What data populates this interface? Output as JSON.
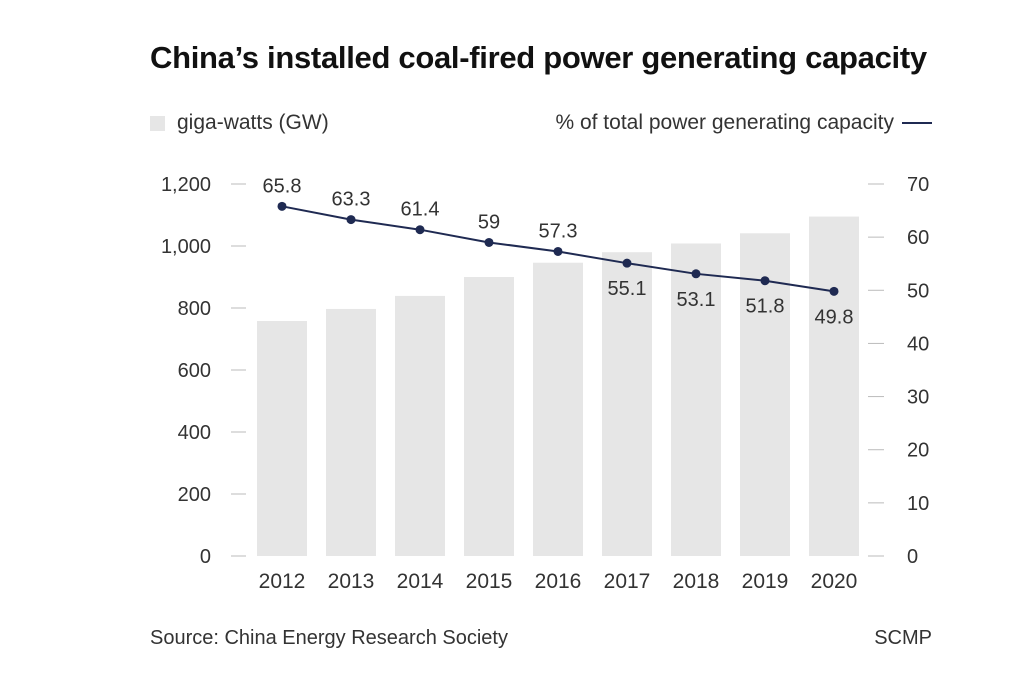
{
  "chart_data": {
    "type": "bar",
    "title": "China’s installed coal-fired power generating capacity",
    "categories": [
      "2012",
      "2013",
      "2014",
      "2015",
      "2016",
      "2017",
      "2018",
      "2019",
      "2020"
    ],
    "series": [
      {
        "name": "giga-watts (GW)",
        "type": "bar",
        "axis": "left",
        "color": "#e6e6e6",
        "values": [
          758,
          797,
          839,
          900,
          946,
          980,
          1008,
          1041,
          1095
        ]
      },
      {
        "name": "% of total power generating capacity",
        "type": "line",
        "axis": "right",
        "color": "#1f2a52",
        "values": [
          65.8,
          63.3,
          61.4,
          59,
          57.3,
          55.1,
          53.1,
          51.8,
          49.8
        ],
        "labels": [
          "65.8",
          "63.3",
          "61.4",
          "59",
          "57.3",
          "55.1",
          "53.1",
          "51.8",
          "49.8"
        ],
        "label_positions": [
          "above",
          "above",
          "above",
          "above",
          "above",
          "below",
          "below",
          "below",
          "below"
        ]
      }
    ],
    "y_left": {
      "ylim": [
        0,
        1200
      ],
      "ticks": [
        0,
        200,
        400,
        600,
        800,
        1000,
        1200
      ],
      "tick_labels": [
        "0",
        "200",
        "400",
        "600",
        "800",
        "1,000",
        "1,200"
      ]
    },
    "y_right": {
      "ylim": [
        0,
        70
      ],
      "ticks": [
        0,
        10,
        20,
        30,
        40,
        50,
        60,
        70
      ],
      "tick_labels": [
        "0",
        "10",
        "20",
        "30",
        "40",
        "50",
        "60",
        "70"
      ]
    },
    "xlabel": "",
    "ylabel": "",
    "grid": false
  },
  "legend": {
    "bars_label": "giga-watts (GW)",
    "line_label": "% of total power generating capacity"
  },
  "footer": {
    "source": "Source: China Energy Research Society",
    "brand": "SCMP"
  },
  "colors": {
    "bar": "#e6e6e6",
    "line": "#1f2a52",
    "tick": "#bbbbbb",
    "text": "#333333"
  }
}
